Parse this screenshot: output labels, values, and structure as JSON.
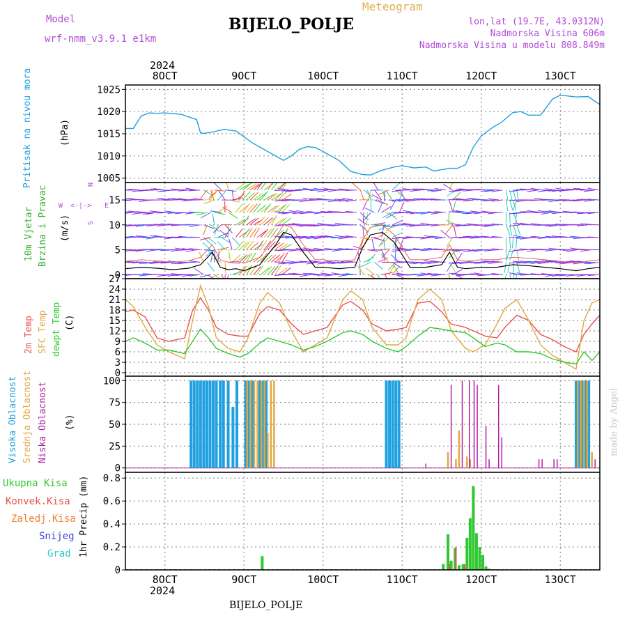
{
  "header": {
    "model_label": "Model",
    "model_name": "wrf-nmm_v3.9.1 e1km",
    "station": "BIJELO_POLJE",
    "meteogram": "Meteogram",
    "coords": "lon,lat (19.7E, 43.0312N)",
    "elevation": "Nadmorska Visina 606m",
    "model_elevation": "Nadmorska Visina u modelu 808.849m",
    "credit": "made by Angel",
    "footer_station": "BIJELO_POLJE"
  },
  "time_axis": {
    "year": "2024",
    "ticks": [
      "8OCT",
      "9OCT",
      "10OCT",
      "11OCT",
      "12OCT",
      "13OCT"
    ],
    "tick_days": [
      8,
      9,
      10,
      11,
      12,
      13
    ],
    "range_days": [
      7.5,
      13.5
    ]
  },
  "colors": {
    "pressure": "#1fa0e0",
    "temp2m": "#e85050",
    "sfc": "#e0a840",
    "dewpt": "#30c830",
    "high_cloud": "#1fa0e0",
    "mid_cloud": "#e0a840",
    "low_cloud": "#b020a0",
    "total_precip": "#30c830",
    "conv_precip": "#e85050",
    "freezing": "#f08030",
    "snow": "#4040e0",
    "hail": "#30c8c8",
    "wind_speed": "#000000",
    "gust": "#e85050"
  },
  "chart_data": [
    {
      "type": "line",
      "name": "pressure",
      "ylabel": [
        "Pritisak na nivou mora",
        "(hPa)"
      ],
      "ylim": [
        1004,
        1026
      ],
      "yticks": [
        1005,
        1010,
        1015,
        1020,
        1025
      ],
      "x": [
        7.5,
        7.6,
        7.7,
        7.8,
        7.9,
        8.0,
        8.2,
        8.4,
        8.45,
        8.5,
        8.6,
        8.75,
        8.9,
        9.1,
        9.3,
        9.5,
        9.6,
        9.7,
        9.8,
        9.9,
        10.0,
        10.2,
        10.35,
        10.5,
        10.6,
        10.75,
        10.9,
        11.0,
        11.15,
        11.3,
        11.4,
        11.6,
        11.7,
        11.8,
        11.9,
        12.0,
        12.15,
        12.25,
        12.4,
        12.5,
        12.6,
        12.75,
        12.9,
        13.0,
        13.2,
        13.35,
        13.5
      ],
      "values": [
        1016.2,
        1016.2,
        1019.0,
        1019.7,
        1019.6,
        1019.7,
        1019.4,
        1018.2,
        1015.2,
        1015.1,
        1015.4,
        1016.0,
        1015.6,
        1013.0,
        1011.0,
        1009.0,
        1010.0,
        1011.5,
        1012.1,
        1011.9,
        1011.0,
        1009.0,
        1006.5,
        1005.8,
        1005.7,
        1006.8,
        1007.5,
        1007.8,
        1007.3,
        1007.5,
        1006.6,
        1007.2,
        1007.2,
        1008.0,
        1012.0,
        1014.5,
        1016.5,
        1017.5,
        1019.8,
        1020.0,
        1019.2,
        1019.2,
        1022.8,
        1023.7,
        1023.3,
        1023.4,
        1021.6
      ]
    },
    {
      "type": "line",
      "name": "wind",
      "ylabel": [
        "10m Vjetar",
        "Brzina i Pravac",
        "(m/s)"
      ],
      "ylim": [
        -0.8,
        18.5
      ],
      "yticks": [
        0,
        5,
        10,
        15
      ],
      "compass": {
        "north": "N",
        "south": "S",
        "west": "W",
        "east": "E"
      },
      "x": [
        7.5,
        7.7,
        7.9,
        8.1,
        8.3,
        8.45,
        8.6,
        8.7,
        8.8,
        8.9,
        9.0,
        9.2,
        9.4,
        9.5,
        9.6,
        9.75,
        9.9,
        10.0,
        10.2,
        10.4,
        10.5,
        10.6,
        10.75,
        10.9,
        11.1,
        11.3,
        11.5,
        11.6,
        11.7,
        11.8,
        12.0,
        12.2,
        12.4,
        12.6,
        12.8,
        13.0,
        13.2,
        13.35,
        13.5
      ],
      "values": [
        1.2,
        1.5,
        1.3,
        1.0,
        1.3,
        2.0,
        4.5,
        1.5,
        1.0,
        1.2,
        0.8,
        2.0,
        6.0,
        8.5,
        8.0,
        4.5,
        1.5,
        1.5,
        1.2,
        1.5,
        5.5,
        8.0,
        8.5,
        6.5,
        1.5,
        1.5,
        2.0,
        4.5,
        1.5,
        1.2,
        1.5,
        1.5,
        2.0,
        1.8,
        1.5,
        1.2,
        0.8,
        1.2,
        1.5
      ]
    },
    {
      "type": "line",
      "name": "temperature",
      "ylabel": [
        "2m Temp",
        "SFC Temp",
        "dewpt Temp",
        "(C)"
      ],
      "ylim": [
        -1,
        27
      ],
      "yticks": [
        0,
        3,
        6,
        9,
        12,
        15,
        18,
        21,
        24,
        27
      ],
      "x": [
        7.5,
        7.6,
        7.75,
        7.9,
        8.05,
        8.25,
        8.35,
        8.45,
        8.55,
        8.65,
        8.8,
        8.95,
        9.05,
        9.2,
        9.3,
        9.45,
        9.6,
        9.75,
        9.9,
        10.05,
        10.25,
        10.35,
        10.5,
        10.62,
        10.8,
        10.95,
        11.05,
        11.2,
        11.35,
        11.5,
        11.62,
        11.8,
        11.9,
        12.05,
        12.2,
        12.3,
        12.45,
        12.6,
        12.75,
        12.9,
        13.05,
        13.2,
        13.3,
        13.4,
        13.5
      ],
      "series": [
        {
          "key": "temp2m",
          "values": [
            17.5,
            18.0,
            16.0,
            10.0,
            9.0,
            10.0,
            18.0,
            21.5,
            18.0,
            13.0,
            11.0,
            10.5,
            10.5,
            17.0,
            19.0,
            18.0,
            14.0,
            11.0,
            12.0,
            13.0,
            19.5,
            20.5,
            18.0,
            14.0,
            12.0,
            12.5,
            13.0,
            20.0,
            20.5,
            17.5,
            14.0,
            13.0,
            12.0,
            10.5,
            10.0,
            13.0,
            16.5,
            15.0,
            11.0,
            9.5,
            7.5,
            6.0,
            11.0,
            14.0,
            16.5
          ]
        },
        {
          "key": "sfc",
          "values": [
            21.0,
            19.0,
            13.0,
            8.0,
            6.0,
            4.0,
            15.0,
            25.0,
            19.0,
            10.0,
            7.0,
            6.0,
            10.0,
            20.0,
            23.0,
            20.0,
            12.0,
            6.0,
            8.0,
            10.0,
            21.0,
            23.5,
            21.0,
            13.0,
            8.0,
            8.0,
            10.0,
            21.0,
            24.0,
            21.0,
            12.0,
            7.0,
            6.0,
            8.0,
            14.0,
            18.5,
            21.0,
            15.0,
            8.0,
            5.0,
            3.0,
            1.0,
            15.0,
            20.0,
            21.0
          ]
        },
        {
          "key": "dewpt",
          "values": [
            9.0,
            10.0,
            8.5,
            6.5,
            6.5,
            5.5,
            9.0,
            12.5,
            10.0,
            7.0,
            5.5,
            4.5,
            5.5,
            8.5,
            10.0,
            9.0,
            8.0,
            6.5,
            7.5,
            9.0,
            11.5,
            12.0,
            11.0,
            9.0,
            7.0,
            6.0,
            7.5,
            10.5,
            13.0,
            12.5,
            12.0,
            11.5,
            10.0,
            7.5,
            8.5,
            8.0,
            6.0,
            6.0,
            5.5,
            4.0,
            3.0,
            2.5,
            6.0,
            3.5,
            6.0
          ]
        }
      ]
    },
    {
      "type": "bar",
      "name": "clouds",
      "ylabel": [
        "Visoka Oblacnost",
        "Srednja Oblacnost",
        "Niska Oblacnost",
        "(%)"
      ],
      "ylim": [
        -5,
        105
      ],
      "yticks": [
        0,
        25,
        50,
        75,
        100
      ],
      "high_cloud": {
        "x": [
          8.33,
          8.37,
          8.41,
          8.45,
          8.49,
          8.53,
          8.57,
          8.61,
          8.65,
          8.7,
          8.74,
          8.8,
          8.86,
          8.91,
          9.02,
          9.06,
          9.11,
          9.2,
          9.24,
          9.28,
          10.8,
          10.84,
          10.88,
          10.92,
          10.96,
          13.2,
          13.24,
          13.28,
          13.32,
          13.36
        ],
        "values": [
          100,
          100,
          100,
          100,
          100,
          100,
          100,
          100,
          100,
          100,
          100,
          100,
          70,
          100,
          100,
          100,
          100,
          100,
          100,
          100,
          100,
          100,
          100,
          100,
          100,
          100,
          100,
          100,
          100,
          100
        ]
      },
      "mid_cloud": {
        "x": [
          9.04,
          9.08,
          9.13,
          9.17,
          9.22,
          9.26,
          9.3,
          9.34,
          9.38,
          11.58,
          11.68,
          11.72,
          11.82,
          11.86,
          13.22,
          13.26,
          13.3,
          13.34,
          13.4
        ],
        "values": [
          100,
          100,
          100,
          100,
          100,
          100,
          40,
          100,
          100,
          18,
          10,
          43,
          13,
          10,
          100,
          100,
          100,
          100,
          18
        ]
      },
      "low_cloud": {
        "x": [
          11.3,
          11.62,
          11.76,
          11.85,
          11.91,
          11.95,
          12.06,
          12.1,
          12.22,
          12.26,
          12.73,
          12.77,
          12.92,
          12.96,
          13.44
        ],
        "values": [
          5,
          95,
          100,
          100,
          100,
          95,
          48,
          10,
          95,
          35,
          10,
          10,
          10,
          10,
          10
        ]
      }
    },
    {
      "type": "bar",
      "name": "precipitation",
      "ylabel": [
        "1hr Precip (mm)"
      ],
      "ylim": [
        0,
        0.85
      ],
      "yticks": [
        0,
        0.2,
        0.4,
        0.6,
        0.8
      ],
      "legend": [
        "Ukupna Kisa",
        "Konvek.Kisa",
        "Zaledj.Kisa",
        "Snijeg",
        "Grad"
      ],
      "total_precip": {
        "x": [
          9.23,
          11.52,
          11.58,
          11.62,
          11.67,
          11.72,
          11.77,
          11.82,
          11.86,
          11.9,
          11.94,
          11.98,
          12.02,
          12.06,
          12.1
        ],
        "values": [
          0.12,
          0.05,
          0.31,
          0.08,
          0.19,
          0.04,
          0.05,
          0.28,
          0.45,
          0.73,
          0.32,
          0.2,
          0.13,
          0.03,
          0.01
        ]
      },
      "conv_precip": {
        "x": [
          11.6,
          11.68,
          11.79
        ],
        "values": [
          0.05,
          0.2,
          0.05
        ]
      }
    }
  ]
}
